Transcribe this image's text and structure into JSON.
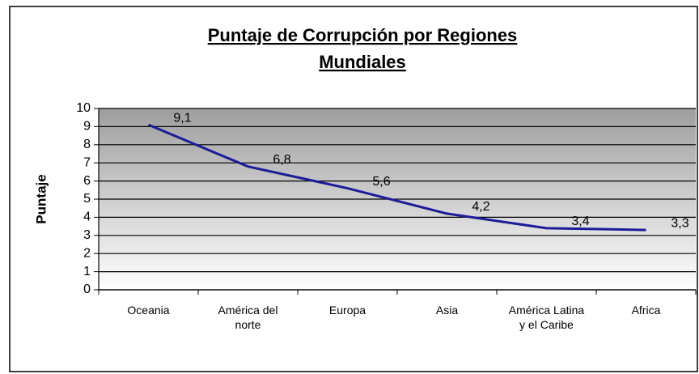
{
  "chart_data": {
    "type": "line",
    "title": "Puntaje de Corrupción por Regiones Mundiales",
    "y_label": "Puntaje",
    "categories": [
      "Oceania",
      "América del norte",
      "Europa",
      "Asia",
      "América Latina y el Caribe",
      "Africa"
    ],
    "values": [
      9.1,
      6.8,
      5.6,
      4.2,
      3.4,
      3.3
    ],
    "value_labels": [
      "9,1",
      "6,8",
      "5,6",
      "4,2",
      "3,4",
      "3,3"
    ],
    "color": "#1c1c99",
    "ylim": [
      0,
      10
    ],
    "yticks": [
      0,
      1,
      2,
      3,
      4,
      5,
      6,
      7,
      8,
      9,
      10
    ],
    "grid": true
  }
}
